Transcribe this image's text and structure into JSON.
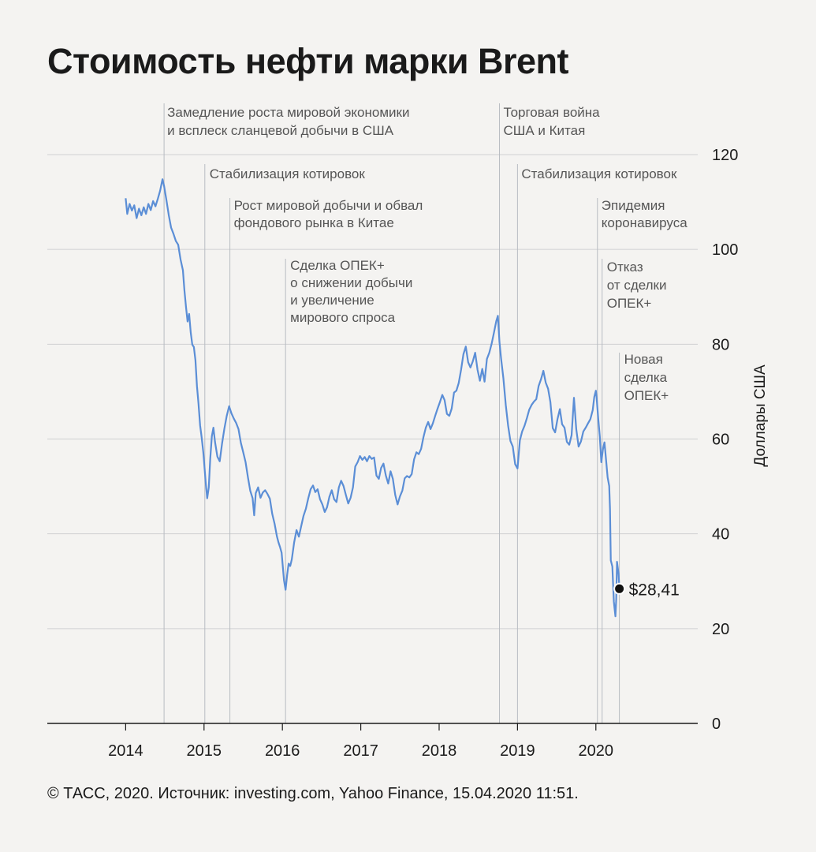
{
  "title": "Стоимость нефти марки Brent",
  "footer": "© ТАСС, 2020. Источник: investing.com, Yahoo Finance, 15.04.2020 11:51.",
  "colors": {
    "line": "#5b8ed6",
    "grid": "#cfd0d2",
    "axis": "#1a1a1a",
    "event_line": "#b8bcc2",
    "background": "#f4f3f1"
  },
  "chart_data": {
    "type": "line",
    "title": "Стоимость нефти марки Brent",
    "ylabel": "Доллары США",
    "xlabel": "",
    "ylim": [
      0,
      120
    ],
    "xlim": [
      2013.0,
      2021.3
    ],
    "yticks": [
      0,
      20,
      40,
      60,
      80,
      100,
      120
    ],
    "xticks": [
      {
        "x": 2014.0,
        "label": "2014"
      },
      {
        "x": 2015.0,
        "label": "2015"
      },
      {
        "x": 2016.0,
        "label": "2016"
      },
      {
        "x": 2017.0,
        "label": "2017"
      },
      {
        "x": 2018.0,
        "label": "2018"
      },
      {
        "x": 2019.0,
        "label": "2019"
      },
      {
        "x": 2020.0,
        "label": "2020"
      }
    ],
    "series": [
      {
        "name": "Brent",
        "points": [
          [
            2014.0,
            110.8
          ],
          [
            2014.02,
            107.5
          ],
          [
            2014.05,
            109.6
          ],
          [
            2014.08,
            108.2
          ],
          [
            2014.11,
            109.3
          ],
          [
            2014.14,
            106.6
          ],
          [
            2014.17,
            108.6
          ],
          [
            2014.2,
            107.2
          ],
          [
            2014.23,
            108.9
          ],
          [
            2014.26,
            107.5
          ],
          [
            2014.29,
            109.6
          ],
          [
            2014.32,
            108.3
          ],
          [
            2014.35,
            110.2
          ],
          [
            2014.38,
            109.1
          ],
          [
            2014.41,
            110.7
          ],
          [
            2014.44,
            112.4
          ],
          [
            2014.47,
            114.8
          ],
          [
            2014.49,
            113.4
          ],
          [
            2014.52,
            110.4
          ],
          [
            2014.55,
            107.2
          ],
          [
            2014.58,
            104.6
          ],
          [
            2014.61,
            103.3
          ],
          [
            2014.64,
            101.8
          ],
          [
            2014.67,
            101.0
          ],
          [
            2014.7,
            97.9
          ],
          [
            2014.73,
            95.6
          ],
          [
            2014.75,
            91.4
          ],
          [
            2014.77,
            87.9
          ],
          [
            2014.79,
            84.8
          ],
          [
            2014.81,
            86.4
          ],
          [
            2014.83,
            82.5
          ],
          [
            2014.85,
            79.9
          ],
          [
            2014.87,
            79.4
          ],
          [
            2014.89,
            76.6
          ],
          [
            2014.91,
            71.2
          ],
          [
            2014.93,
            67.4
          ],
          [
            2014.95,
            62.9
          ],
          [
            2014.97,
            60.3
          ],
          [
            2014.99,
            57.3
          ],
          [
            2015.0,
            55.3
          ],
          [
            2015.02,
            51.0
          ],
          [
            2015.04,
            47.5
          ],
          [
            2015.06,
            49.8
          ],
          [
            2015.08,
            55.9
          ],
          [
            2015.1,
            60.6
          ],
          [
            2015.12,
            62.4
          ],
          [
            2015.14,
            59.4
          ],
          [
            2015.17,
            56.3
          ],
          [
            2015.2,
            55.3
          ],
          [
            2015.23,
            59.1
          ],
          [
            2015.26,
            62.2
          ],
          [
            2015.29,
            64.9
          ],
          [
            2015.32,
            66.9
          ],
          [
            2015.35,
            65.4
          ],
          [
            2015.38,
            64.3
          ],
          [
            2015.41,
            63.4
          ],
          [
            2015.44,
            62.1
          ],
          [
            2015.47,
            59.2
          ],
          [
            2015.5,
            57.2
          ],
          [
            2015.53,
            55.1
          ],
          [
            2015.56,
            51.9
          ],
          [
            2015.59,
            49.1
          ],
          [
            2015.62,
            47.5
          ],
          [
            2015.64,
            43.9
          ],
          [
            2015.66,
            48.6
          ],
          [
            2015.69,
            49.8
          ],
          [
            2015.72,
            47.6
          ],
          [
            2015.75,
            48.7
          ],
          [
            2015.78,
            49.2
          ],
          [
            2015.81,
            48.4
          ],
          [
            2015.84,
            47.4
          ],
          [
            2015.87,
            44.2
          ],
          [
            2015.9,
            42.1
          ],
          [
            2015.93,
            39.5
          ],
          [
            2015.95,
            38.2
          ],
          [
            2015.97,
            37.2
          ],
          [
            2015.99,
            36.0
          ],
          [
            2016.02,
            30.2
          ],
          [
            2016.04,
            28.2
          ],
          [
            2016.06,
            31.3
          ],
          [
            2016.08,
            33.7
          ],
          [
            2016.1,
            33.2
          ],
          [
            2016.12,
            34.6
          ],
          [
            2016.15,
            38.2
          ],
          [
            2016.18,
            40.8
          ],
          [
            2016.21,
            39.4
          ],
          [
            2016.24,
            41.6
          ],
          [
            2016.27,
            43.8
          ],
          [
            2016.3,
            45.3
          ],
          [
            2016.33,
            47.5
          ],
          [
            2016.36,
            49.4
          ],
          [
            2016.39,
            50.2
          ],
          [
            2016.42,
            48.8
          ],
          [
            2016.45,
            49.4
          ],
          [
            2016.48,
            47.3
          ],
          [
            2016.51,
            46.2
          ],
          [
            2016.54,
            44.6
          ],
          [
            2016.57,
            45.6
          ],
          [
            2016.6,
            47.8
          ],
          [
            2016.63,
            49.2
          ],
          [
            2016.66,
            47.3
          ],
          [
            2016.69,
            46.7
          ],
          [
            2016.72,
            49.8
          ],
          [
            2016.75,
            51.2
          ],
          [
            2016.78,
            50.1
          ],
          [
            2016.81,
            48.2
          ],
          [
            2016.84,
            46.4
          ],
          [
            2016.87,
            47.6
          ],
          [
            2016.9,
            49.8
          ],
          [
            2016.93,
            54.2
          ],
          [
            2016.96,
            55.1
          ],
          [
            2016.99,
            56.4
          ],
          [
            2017.02,
            55.6
          ],
          [
            2017.05,
            56.2
          ],
          [
            2017.08,
            55.3
          ],
          [
            2017.11,
            56.4
          ],
          [
            2017.14,
            55.8
          ],
          [
            2017.17,
            56.1
          ],
          [
            2017.2,
            52.3
          ],
          [
            2017.23,
            51.6
          ],
          [
            2017.26,
            53.9
          ],
          [
            2017.29,
            54.8
          ],
          [
            2017.32,
            52.3
          ],
          [
            2017.35,
            50.6
          ],
          [
            2017.38,
            53.2
          ],
          [
            2017.41,
            51.6
          ],
          [
            2017.44,
            48.2
          ],
          [
            2017.47,
            46.2
          ],
          [
            2017.5,
            47.9
          ],
          [
            2017.53,
            49.1
          ],
          [
            2017.56,
            51.7
          ],
          [
            2017.59,
            52.2
          ],
          [
            2017.62,
            51.9
          ],
          [
            2017.65,
            52.6
          ],
          [
            2017.68,
            55.7
          ],
          [
            2017.71,
            57.2
          ],
          [
            2017.74,
            56.8
          ],
          [
            2017.77,
            57.9
          ],
          [
            2017.8,
            60.4
          ],
          [
            2017.83,
            62.4
          ],
          [
            2017.86,
            63.6
          ],
          [
            2017.89,
            62.1
          ],
          [
            2017.92,
            63.3
          ],
          [
            2017.95,
            64.9
          ],
          [
            2017.98,
            66.4
          ],
          [
            2018.01,
            67.8
          ],
          [
            2018.04,
            69.3
          ],
          [
            2018.07,
            68.2
          ],
          [
            2018.1,
            65.3
          ],
          [
            2018.13,
            64.9
          ],
          [
            2018.16,
            66.4
          ],
          [
            2018.19,
            69.8
          ],
          [
            2018.22,
            70.2
          ],
          [
            2018.25,
            71.8
          ],
          [
            2018.28,
            74.6
          ],
          [
            2018.31,
            77.9
          ],
          [
            2018.34,
            79.5
          ],
          [
            2018.37,
            76.2
          ],
          [
            2018.4,
            75.1
          ],
          [
            2018.43,
            76.4
          ],
          [
            2018.46,
            78.2
          ],
          [
            2018.49,
            74.6
          ],
          [
            2018.52,
            72.3
          ],
          [
            2018.55,
            74.8
          ],
          [
            2018.58,
            72.1
          ],
          [
            2018.61,
            76.9
          ],
          [
            2018.64,
            78.2
          ],
          [
            2018.67,
            80.1
          ],
          [
            2018.7,
            82.5
          ],
          [
            2018.73,
            84.9
          ],
          [
            2018.75,
            86.0
          ],
          [
            2018.77,
            80.5
          ],
          [
            2018.79,
            77.1
          ],
          [
            2018.82,
            72.8
          ],
          [
            2018.85,
            67.2
          ],
          [
            2018.88,
            62.8
          ],
          [
            2018.91,
            59.6
          ],
          [
            2018.94,
            58.4
          ],
          [
            2018.97,
            54.7
          ],
          [
            2019.0,
            53.8
          ],
          [
            2019.03,
            59.7
          ],
          [
            2019.06,
            61.6
          ],
          [
            2019.09,
            62.8
          ],
          [
            2019.12,
            64.4
          ],
          [
            2019.15,
            66.2
          ],
          [
            2019.18,
            67.2
          ],
          [
            2019.21,
            67.9
          ],
          [
            2019.24,
            68.4
          ],
          [
            2019.27,
            71.2
          ],
          [
            2019.3,
            72.6
          ],
          [
            2019.33,
            74.4
          ],
          [
            2019.36,
            71.9
          ],
          [
            2019.39,
            70.6
          ],
          [
            2019.42,
            67.8
          ],
          [
            2019.45,
            62.3
          ],
          [
            2019.48,
            61.4
          ],
          [
            2019.51,
            64.2
          ],
          [
            2019.54,
            66.3
          ],
          [
            2019.57,
            63.1
          ],
          [
            2019.6,
            62.4
          ],
          [
            2019.63,
            59.4
          ],
          [
            2019.66,
            58.8
          ],
          [
            2019.69,
            60.8
          ],
          [
            2019.72,
            68.7
          ],
          [
            2019.75,
            62.1
          ],
          [
            2019.78,
            58.4
          ],
          [
            2019.81,
            59.5
          ],
          [
            2019.84,
            61.6
          ],
          [
            2019.87,
            62.4
          ],
          [
            2019.9,
            63.3
          ],
          [
            2019.93,
            64.2
          ],
          [
            2019.96,
            66.1
          ],
          [
            2019.98,
            68.9
          ],
          [
            2020.0,
            70.2
          ],
          [
            2020.01,
            68.6
          ],
          [
            2020.03,
            64.3
          ],
          [
            2020.05,
            60.5
          ],
          [
            2020.07,
            55.1
          ],
          [
            2020.09,
            57.8
          ],
          [
            2020.11,
            59.3
          ],
          [
            2020.13,
            55.6
          ],
          [
            2020.15,
            51.9
          ],
          [
            2020.17,
            50.1
          ],
          [
            2020.18,
            45.3
          ],
          [
            2020.19,
            34.4
          ],
          [
            2020.21,
            33.1
          ],
          [
            2020.22,
            29.1
          ],
          [
            2020.23,
            25.7
          ],
          [
            2020.24,
            24.1
          ],
          [
            2020.25,
            22.6
          ],
          [
            2020.26,
            26.2
          ],
          [
            2020.27,
            34.1
          ],
          [
            2020.28,
            32.8
          ],
          [
            2020.29,
            31.5
          ],
          [
            2020.3,
            28.4
          ]
        ]
      }
    ],
    "events": [
      {
        "x": 2014.49,
        "label_lines": [
          "Замедление роста мировой экономики",
          "и всплеск сланцевой добычи в США"
        ]
      },
      {
        "x": 2015.01,
        "label_lines": [
          "Стабилизация котировок"
        ]
      },
      {
        "x": 2015.33,
        "label_lines": [
          "Рост мировой добычи и обвал",
          "фондового рынка в Китае"
        ]
      },
      {
        "x": 2016.04,
        "label_lines": [
          "Сделка ОПЕК+",
          "о снижении добычи",
          "и увеличение",
          "мирового спроса"
        ]
      },
      {
        "x": 2018.77,
        "label_lines": [
          "Торговая война",
          "США и Китая"
        ]
      },
      {
        "x": 2019.0,
        "label_lines": [
          "Стабилизация котировок"
        ]
      },
      {
        "x": 2020.02,
        "label_lines": [
          "Эпидемия",
          "коронавируса"
        ]
      },
      {
        "x": 2020.08,
        "label_lines": [
          "Отказ",
          "от сделки",
          "ОПЕК+"
        ]
      },
      {
        "x": 2020.3,
        "label_lines": [
          "Новая",
          "сделка",
          "ОПЕК+"
        ]
      }
    ],
    "last_point": {
      "x": 2020.3,
      "y": 28.41,
      "label": "$28,41"
    }
  }
}
